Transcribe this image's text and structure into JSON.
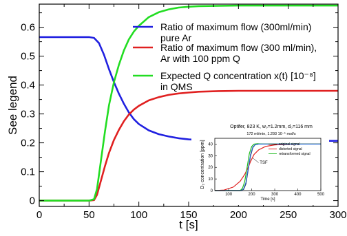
{
  "chart_data": [
    {
      "type": "line",
      "xlabel": "t [s]",
      "ylabel": "See legend",
      "xlim": [
        0,
        300
      ],
      "ylim": [
        -0.02,
        0.68
      ],
      "x_ticks": [
        "0",
        "50",
        "100",
        "150",
        "200",
        "250",
        "300"
      ],
      "y_ticks": [
        "0",
        "0.1",
        "0.2",
        "0.3",
        "0.4",
        "0.5",
        "0.6"
      ],
      "x_tick_values": [
        0,
        50,
        100,
        150,
        200,
        250,
        300
      ],
      "y_tick_values": [
        0,
        0.1,
        0.2,
        0.3,
        0.4,
        0.5,
        0.6
      ],
      "legend_position": "top-right",
      "series": [
        {
          "name_lines": [
            "Ratio of maximum flow (300ml/min)",
            "pure Ar"
          ],
          "color": "#2020e0",
          "x": [
            0,
            50,
            55,
            60,
            65,
            70,
            75,
            80,
            85,
            90,
            95,
            100,
            110,
            120,
            130,
            140,
            150,
            160,
            180,
            200,
            225,
            250,
            275,
            300
          ],
          "y": [
            0.566,
            0.566,
            0.563,
            0.545,
            0.505,
            0.455,
            0.41,
            0.37,
            0.335,
            0.305,
            0.282,
            0.265,
            0.243,
            0.23,
            0.222,
            0.216,
            0.212,
            0.21,
            0.208,
            0.207,
            0.207,
            0.207,
            0.207,
            0.207
          ]
        },
        {
          "name_lines": [
            "Ratio of maximum flow (300 ml/min),",
            " Ar with 100 ppm Q"
          ],
          "color": "#e02020",
          "x": [
            0,
            50,
            55,
            58,
            62,
            66,
            70,
            75,
            80,
            85,
            90,
            95,
            100,
            110,
            120,
            130,
            140,
            150,
            160,
            180,
            200,
            225,
            250,
            275,
            300
          ],
          "y": [
            0,
            0,
            0.002,
            0.02,
            0.07,
            0.12,
            0.165,
            0.21,
            0.245,
            0.275,
            0.298,
            0.315,
            0.328,
            0.347,
            0.358,
            0.366,
            0.371,
            0.374,
            0.377,
            0.379,
            0.38,
            0.38,
            0.38,
            0.38,
            0.38
          ]
        },
        {
          "name_lines": [
            "Expected Q concentration x(t) [10⁻⁸]",
            "in QMS"
          ],
          "color": "#22dd22",
          "x": [
            0,
            50,
            55,
            58,
            62,
            66,
            70,
            75,
            80,
            85,
            90,
            95,
            100,
            110,
            120,
            130,
            140,
            150,
            160,
            180,
            200,
            225,
            250,
            275,
            300
          ],
          "y": [
            0,
            0,
            0.005,
            0.04,
            0.14,
            0.24,
            0.33,
            0.41,
            0.47,
            0.52,
            0.558,
            0.585,
            0.605,
            0.635,
            0.652,
            0.662,
            0.668,
            0.671,
            0.673,
            0.674,
            0.675,
            0.675,
            0.675,
            0.675,
            0.675
          ]
        }
      ]
    },
    {
      "type": "line",
      "title_line1": "Optifer, 823 K, w₀=1.2mm, d₀=116 mm",
      "title_line2": "172 ml/min, 1.293 10⁻⁵ mol/s",
      "xlabel": "Time [s]",
      "ylabel": "D₂ concentration [ppm]",
      "xlim": [
        40,
        500
      ],
      "ylim": [
        0,
        45
      ],
      "x_ticks": [
        "100",
        "200",
        "300",
        "400",
        "500"
      ],
      "y_ticks": [
        "0",
        "10",
        "20",
        "30",
        "40"
      ],
      "x_tick_values": [
        100,
        200,
        300,
        400,
        500
      ],
      "y_tick_values": [
        0,
        10,
        20,
        30,
        40
      ],
      "annotation": "TSF",
      "legend_position": "top-right",
      "series": [
        {
          "name": "original signal",
          "color": "#1a1a1a",
          "x": [
            40,
            150,
            165,
            175,
            185,
            195,
            205,
            215,
            230,
            260,
            300,
            400,
            500
          ],
          "y": [
            0,
            0,
            1,
            6,
            18,
            30,
            37,
            39.5,
            40,
            40,
            40,
            40,
            40
          ]
        },
        {
          "name": "distorted signal",
          "color": "#e02020",
          "x": [
            40,
            80,
            120,
            150,
            170,
            185,
            195,
            210,
            230,
            260,
            300,
            350,
            400,
            450,
            500
          ],
          "y": [
            0,
            0.5,
            3,
            8,
            14,
            20,
            25,
            31,
            35,
            38,
            39.3,
            39.8,
            40,
            40,
            40
          ]
        },
        {
          "name": "retransformed signal",
          "color": "#22bb22",
          "x": [
            40,
            150,
            160,
            170,
            180,
            190,
            200,
            210,
            225,
            250,
            300,
            400,
            500
          ],
          "y": [
            0,
            0,
            2,
            8,
            20,
            32,
            38,
            40,
            40.3,
            40,
            40,
            40,
            40
          ]
        },
        {
          "name": "",
          "color": "#2a6cd6",
          "x": [
            40,
            155,
            165,
            175,
            185,
            195,
            205,
            215,
            230,
            260,
            300,
            400,
            500
          ],
          "y": [
            0,
            0,
            1.5,
            7,
            19,
            31,
            37.5,
            39.5,
            40,
            40,
            40,
            40,
            40
          ]
        }
      ]
    }
  ]
}
